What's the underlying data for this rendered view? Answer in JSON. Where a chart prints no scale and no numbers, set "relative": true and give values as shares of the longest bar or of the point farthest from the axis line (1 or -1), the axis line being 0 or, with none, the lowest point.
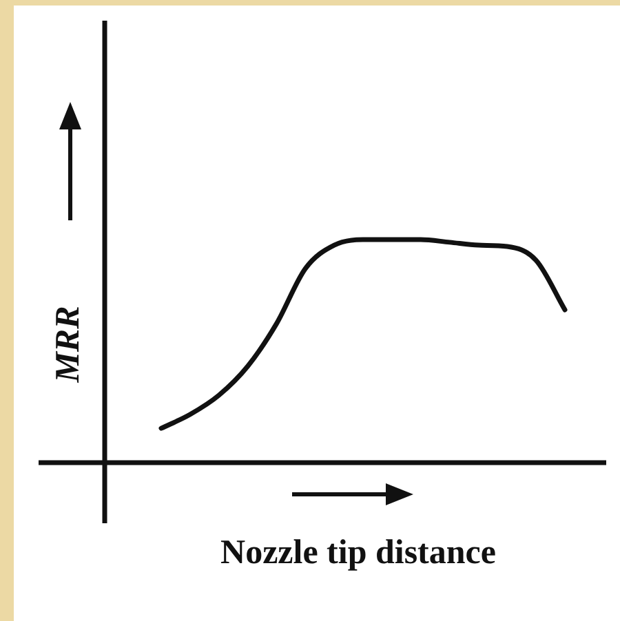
{
  "chart_data": {
    "type": "line",
    "xlabel": "Nozzle tip distance",
    "ylabel": "MRR",
    "relative": true,
    "marker": "none",
    "color": "#111111",
    "categories": [
      null,
      null,
      null,
      null,
      null,
      null,
      null,
      null,
      null,
      null,
      null,
      null,
      null,
      null,
      null
    ],
    "values": [
      0.154,
      0.216,
      0.302,
      0.432,
      0.623,
      0.87,
      0.975,
      1,
      1,
      1,
      0.988,
      0.975,
      0.969,
      0.907,
      0.685
    ]
  }
}
